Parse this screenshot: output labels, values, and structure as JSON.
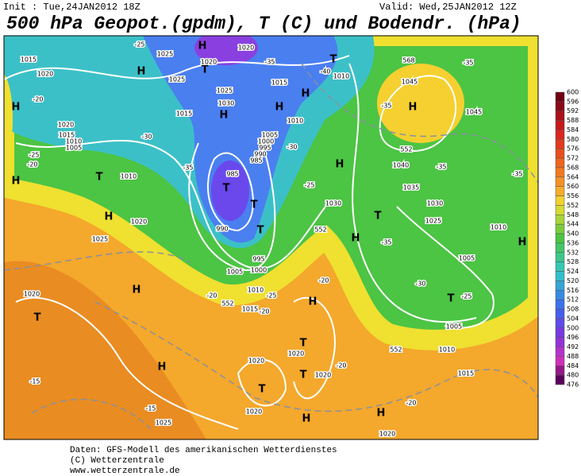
{
  "header": {
    "init": "Init : Tue,24JAN2012 18Z",
    "valid": "Valid: Wed,25JAN2012 12Z",
    "title": "500 hPa Geopot.(gpdm), T (C) und Bodendr. (hPa)"
  },
  "legend": {
    "values": [
      600,
      596,
      592,
      588,
      584,
      580,
      576,
      572,
      568,
      564,
      560,
      556,
      552,
      548,
      544,
      540,
      536,
      532,
      528,
      524,
      520,
      516,
      512,
      508,
      504,
      500,
      496,
      492,
      488,
      484,
      480,
      476
    ]
  },
  "map": {
    "labels": [
      "H",
      "H",
      "H",
      "H",
      "H",
      "H",
      "H",
      "H",
      "H",
      "H",
      "H",
      "H",
      "H",
      "H",
      "H",
      "H",
      "H",
      "T",
      "T",
      "T",
      "T",
      "T",
      "T",
      "T",
      "T",
      "T",
      "T",
      "T",
      "T",
      "1015",
      "1020",
      "1025",
      "1020",
      "1020",
      "1025",
      "1015",
      "1030",
      "1025",
      "1015",
      "1010",
      "1045",
      "1045",
      "1040",
      "1035",
      "1030",
      "1025",
      "1030",
      "1010",
      "1005",
      "1005",
      "1010",
      "1015",
      "1020",
      "1020",
      "1025",
      "1020",
      "1010",
      "1020",
      "1015",
      "1010",
      "1005",
      "985",
      "990",
      "995",
      "1000",
      "1005",
      "1010",
      "1005",
      "1000",
      "995",
      "990",
      "985",
      "1020",
      "1020",
      "1020",
      "1020",
      "1025",
      "1015",
      "1010",
      "-25",
      "-30",
      "-25",
      "-35",
      "-25",
      "-35",
      "-30",
      "-25",
      "-35",
      "-35",
      "-35",
      "-35",
      "-40",
      "-20",
      "-15",
      "-20",
      "-20",
      "-20",
      "-25",
      "-20",
      "-20",
      "-15",
      "-30",
      "-35",
      "-20",
      "568",
      "552",
      "552",
      "552",
      "552"
    ]
  },
  "footer": {
    "lines": [
      "Daten: GFS-Modell des amerikanischen Wetterdienstes",
      "(C) Wetterzentrale",
      "www.wetterzentrale.de"
    ]
  }
}
